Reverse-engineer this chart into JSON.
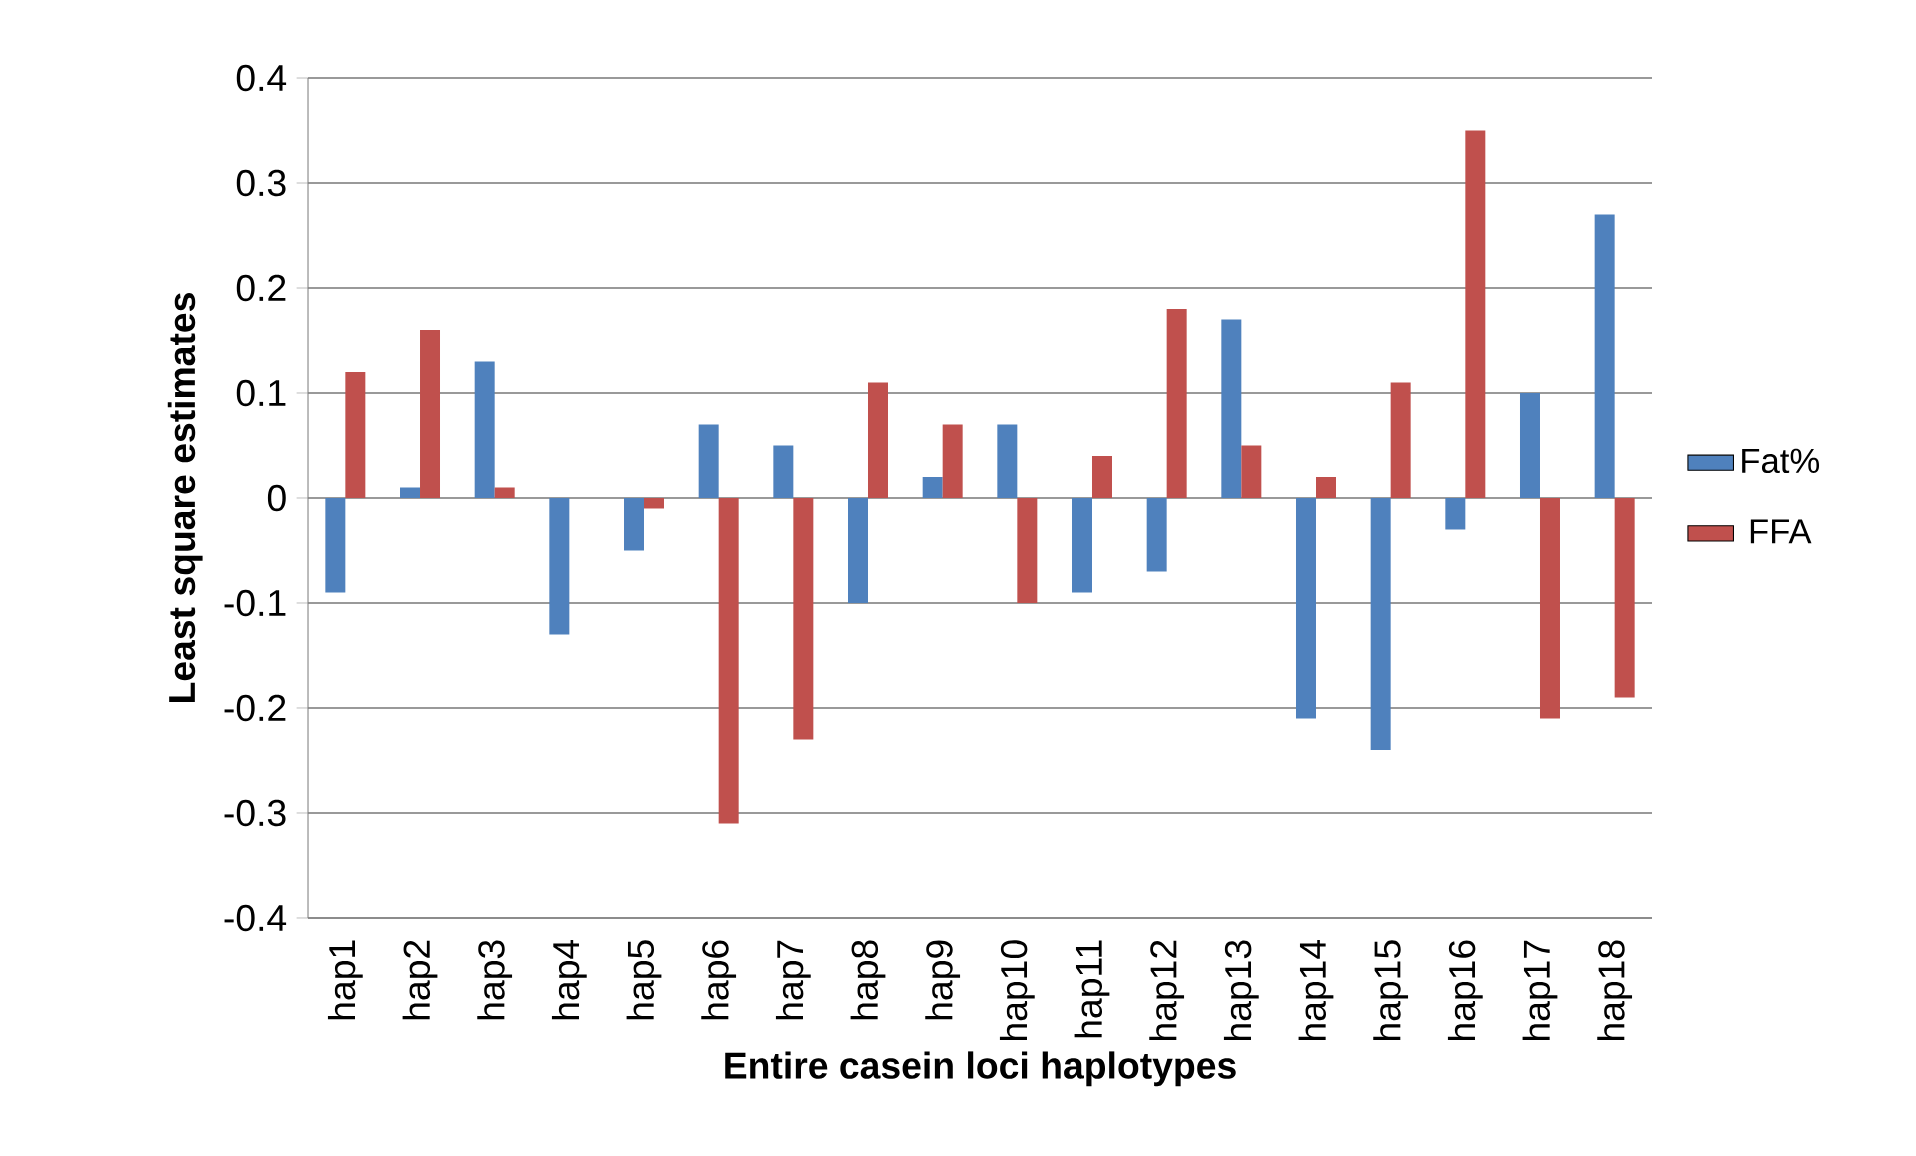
{
  "chart_data": {
    "type": "bar",
    "xlabel": "Entire casein loci haplotypes",
    "ylabel": "Least square estimates",
    "categories": [
      "hap1",
      "hap2",
      "hap3",
      "hap4",
      "hap5",
      "hap6",
      "hap7",
      "hap8",
      "hap9",
      "hap10",
      "hap11",
      "hap12",
      "hap13",
      "hap14",
      "hap15",
      "hap16",
      "hap17",
      "hap18"
    ],
    "series": [
      {
        "name": "Fat%",
        "color": "#4f81bd",
        "values": [
          -0.09,
          0.01,
          0.13,
          -0.13,
          -0.05,
          0.07,
          0.05,
          -0.1,
          0.02,
          0.07,
          -0.09,
          -0.07,
          0.17,
          -0.21,
          -0.24,
          -0.03,
          0.1,
          0.27
        ]
      },
      {
        "name": "FFA",
        "color": "#c0504d",
        "values": [
          0.12,
          0.16,
          0.01,
          0,
          -0.01,
          -0.31,
          -0.23,
          0.11,
          0.07,
          -0.1,
          0.04,
          0.18,
          0.05,
          0.02,
          0.11,
          0.35,
          -0.21,
          -0.19
        ]
      }
    ],
    "ylim": [
      -0.4,
      0.4
    ],
    "yticks": [
      -0.4,
      -0.3,
      -0.2,
      -0.1,
      0,
      0.1,
      0.2,
      0.3,
      0.4
    ],
    "grid": "y",
    "legend": "right"
  }
}
